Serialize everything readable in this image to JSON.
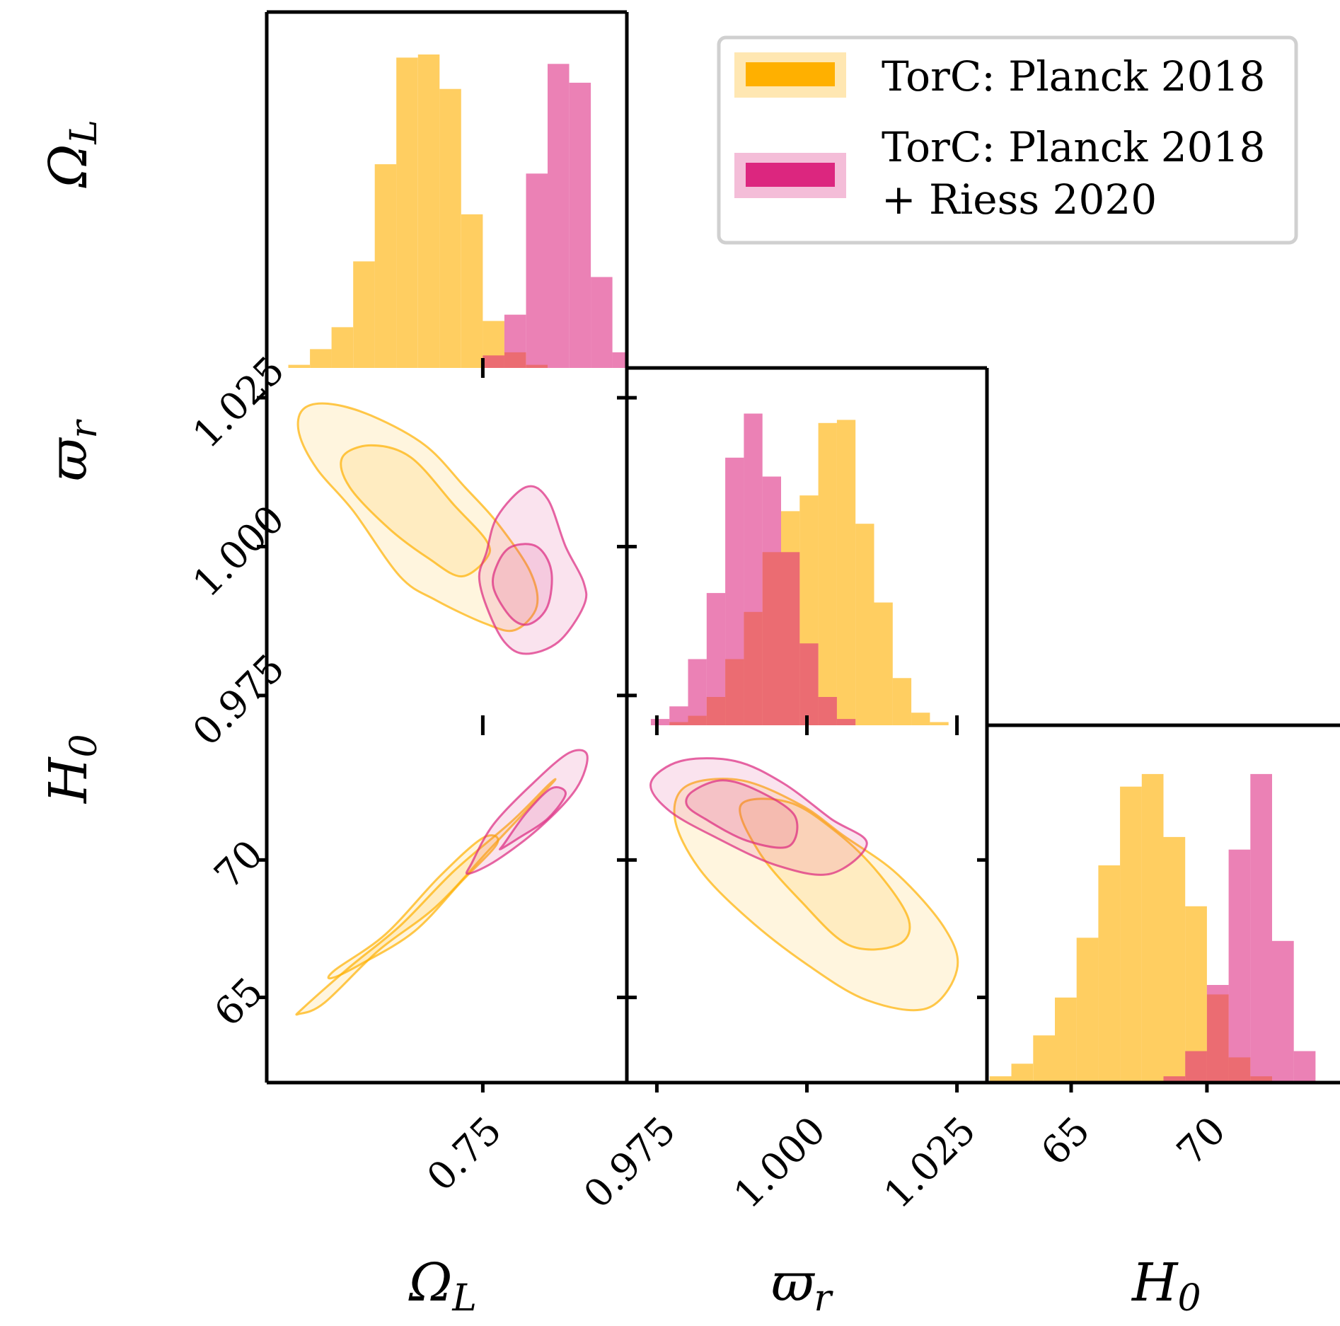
{
  "colors": {
    "planck": "#FFB000",
    "planck_fill_alpha": 0.62,
    "riess": "#DC267F",
    "riess_fill_alpha": 0.58,
    "frame": "#000000",
    "legend_border": "#d0d0d0"
  },
  "legend": {
    "placement": "top-right",
    "entries": [
      {
        "lines": [
          "TorC: Planck 2018"
        ],
        "color_key": "planck"
      },
      {
        "lines": [
          "TorC: Planck 2018",
          "+ Riess 2020"
        ],
        "color_key": "riess"
      }
    ]
  },
  "chart_data": {
    "type": "corner",
    "parameters": [
      "Ω_L",
      "ϖ_r",
      "H_0"
    ],
    "axis_labels": {
      "omega": {
        "base": "Ω",
        "sub": "L"
      },
      "varpi": {
        "base": "ϖ",
        "sub": "r"
      },
      "h0": {
        "base": "H",
        "sub": "0"
      }
    },
    "ranges": {
      "omega": [
        0.69,
        0.79
      ],
      "varpi": [
        0.97,
        1.03
      ],
      "h0": [
        61.9,
        74.9
      ]
    },
    "ticks": {
      "omega": [
        {
          "value": 0.75,
          "label": "0.75"
        }
      ],
      "varpi": [
        {
          "value": 0.975,
          "label": "0.975"
        },
        {
          "value": 1.0,
          "label": "1.000"
        },
        {
          "value": 1.025,
          "label": "1.025"
        }
      ],
      "h0": [
        {
          "value": 65,
          "label": "65"
        },
        {
          "value": 70,
          "label": "70"
        }
      ]
    },
    "histograms": {
      "omega": {
        "bin_edges": [
          0.696,
          0.702,
          0.708,
          0.714,
          0.72,
          0.726,
          0.732,
          0.738,
          0.744,
          0.75,
          0.756,
          0.762,
          0.768,
          0.774,
          0.78,
          0.786,
          0.792
        ],
        "series": [
          {
            "name": "TorC: Planck 2018",
            "color_key": "planck",
            "counts": [
              0.01,
              0.06,
              0.13,
              0.34,
              0.65,
              0.99,
              1.0,
              0.89,
              0.49,
              0.15,
              0.05,
              0.01,
              0,
              0,
              0,
              0
            ]
          },
          {
            "name": "TorC: Planck 2018 + Riess 2020",
            "color_key": "riess",
            "counts": [
              0,
              0,
              0,
              0,
              0,
              0,
              0,
              0,
              0,
              0.04,
              0.17,
              0.62,
              0.97,
              0.91,
              0.29,
              0.05
            ]
          }
        ]
      },
      "varpi": {
        "bin_edges": [
          0.974,
          0.9771,
          0.9802,
          0.9833,
          0.9864,
          0.9895,
          0.9926,
          0.9957,
          0.9988,
          1.0019,
          1.005,
          1.0081,
          1.0112,
          1.0143,
          1.0174,
          1.0205,
          1.0236,
          1.0267
        ],
        "series": [
          {
            "name": "TorC: Planck 2018",
            "color_key": "planck",
            "counts": [
              0,
              0.01,
              0.03,
              0.09,
              0.21,
              0.36,
              0.55,
              0.68,
              0.73,
              0.96,
              0.97,
              0.64,
              0.39,
              0.15,
              0.04,
              0.01,
              0
            ]
          },
          {
            "name": "TorC: Planck 2018 + Riess 2020",
            "color_key": "riess",
            "counts": [
              0.02,
              0.06,
              0.21,
              0.42,
              0.85,
              0.99,
              0.79,
              0.55,
              0.26,
              0.09,
              0.02,
              0,
              0,
              0,
              0,
              0,
              0
            ]
          }
        ]
      },
      "h0": {
        "bin_edges": [
          62.0,
          62.8,
          63.6,
          64.4,
          65.2,
          66.0,
          66.8,
          67.6,
          68.4,
          69.2,
          70.0,
          70.8,
          71.6,
          72.4,
          73.2,
          74.0
        ],
        "series": [
          {
            "name": "TorC: Planck 2018",
            "color_key": "planck",
            "counts": [
              0.02,
              0.06,
              0.15,
              0.27,
              0.46,
              0.69,
              0.94,
              0.98,
              0.78,
              0.56,
              0.28,
              0.08,
              0.02,
              0,
              0
            ]
          },
          {
            "name": "TorC: Planck 2018 + Riess 2020",
            "color_key": "riess",
            "counts": [
              0,
              0,
              0,
              0,
              0,
              0,
              0,
              0,
              0.02,
              0.1,
              0.31,
              0.74,
              0.98,
              0.45,
              0.1
            ]
          }
        ]
      }
    },
    "contours": {
      "omega_varpi": {
        "x": "omega",
        "y": "varpi",
        "series": [
          {
            "name": "TorC: Planck 2018",
            "color_key": "planck",
            "levels": [
              {
                "level": "outer",
                "points": [
                  [
                    0.7,
                    1.023
                  ],
                  [
                    0.707,
                    1.024
                  ],
                  [
                    0.719,
                    1.022
                  ],
                  [
                    0.734,
                    1.017
                  ],
                  [
                    0.745,
                    1.01
                  ],
                  [
                    0.754,
                    1.004
                  ],
                  [
                    0.763,
                    0.996
                  ],
                  [
                    0.765,
                    0.99
                  ],
                  [
                    0.759,
                    0.986
                  ],
                  [
                    0.751,
                    0.987
                  ],
                  [
                    0.737,
                    0.991
                  ],
                  [
                    0.727,
                    0.995
                  ],
                  [
                    0.714,
                    1.006
                  ],
                  [
                    0.704,
                    1.013
                  ],
                  [
                    0.699,
                    1.019
                  ]
                ]
              },
              {
                "level": "inner",
                "points": [
                  [
                    0.711,
                    1.015
                  ],
                  [
                    0.719,
                    1.017
                  ],
                  [
                    0.73,
                    1.015
                  ],
                  [
                    0.742,
                    1.007
                  ],
                  [
                    0.751,
                    1.001
                  ],
                  [
                    0.751,
                    0.998
                  ],
                  [
                    0.744,
                    0.995
                  ],
                  [
                    0.735,
                    0.998
                  ],
                  [
                    0.724,
                    1.003
                  ],
                  [
                    0.713,
                    1.01
                  ]
                ]
              }
            ]
          },
          {
            "name": "TorC: Planck 2018 + Riess 2020",
            "color_key": "riess",
            "levels": [
              {
                "level": "outer",
                "points": [
                  [
                    0.751,
                    0.999
                  ],
                  [
                    0.754,
                    1.005
                  ],
                  [
                    0.762,
                    1.01
                  ],
                  [
                    0.768,
                    1.008
                  ],
                  [
                    0.773,
                    1.0
                  ],
                  [
                    0.778,
                    0.994
                  ],
                  [
                    0.778,
                    0.99
                  ],
                  [
                    0.771,
                    0.984
                  ],
                  [
                    0.762,
                    0.982
                  ],
                  [
                    0.756,
                    0.984
                  ],
                  [
                    0.751,
                    0.99
                  ],
                  [
                    0.749,
                    0.995
                  ]
                ]
              },
              {
                "level": "inner",
                "points": [
                  [
                    0.754,
                    0.997
                  ],
                  [
                    0.758,
                    1.0
                  ],
                  [
                    0.765,
                    1.0
                  ],
                  [
                    0.769,
                    0.996
                  ],
                  [
                    0.768,
                    0.99
                  ],
                  [
                    0.763,
                    0.987
                  ],
                  [
                    0.758,
                    0.988
                  ],
                  [
                    0.753,
                    0.993
                  ]
                ]
              }
            ]
          }
        ]
      },
      "omega_h0": {
        "x": "omega",
        "y": "h0",
        "series": [
          {
            "name": "TorC: Planck 2018",
            "color_key": "planck",
            "levels": [
              {
                "level": "outer",
                "points": [
                  [
                    0.7,
                    64.6
                  ],
                  [
                    0.713,
                    66.1
                  ],
                  [
                    0.727,
                    67.6
                  ],
                  [
                    0.742,
                    69.6
                  ],
                  [
                    0.758,
                    71.4
                  ],
                  [
                    0.768,
                    72.7
                  ],
                  [
                    0.77,
                    72.9
                  ],
                  [
                    0.765,
                    72.2
                  ],
                  [
                    0.752,
                    70.4
                  ],
                  [
                    0.737,
                    68.3
                  ],
                  [
                    0.721,
                    66.7
                  ],
                  [
                    0.706,
                    64.8
                  ],
                  [
                    0.699,
                    64.4
                  ]
                ]
              },
              {
                "level": "inner",
                "points": [
                  [
                    0.709,
                    66.0
                  ],
                  [
                    0.723,
                    67.3
                  ],
                  [
                    0.738,
                    69.4
                  ],
                  [
                    0.75,
                    70.8
                  ],
                  [
                    0.754,
                    70.6
                  ],
                  [
                    0.744,
                    69.2
                  ],
                  [
                    0.731,
                    67.4
                  ],
                  [
                    0.716,
                    66.2
                  ],
                  [
                    0.708,
                    65.7
                  ]
                ]
              }
            ]
          },
          {
            "name": "TorC: Planck 2018 + Riess 2020",
            "color_key": "riess",
            "levels": [
              {
                "level": "outer",
                "points": [
                  [
                    0.747,
                    69.9
                  ],
                  [
                    0.753,
                    71.3
                  ],
                  [
                    0.764,
                    72.8
                  ],
                  [
                    0.774,
                    73.9
                  ],
                  [
                    0.779,
                    73.8
                  ],
                  [
                    0.776,
                    72.6
                  ],
                  [
                    0.766,
                    71.2
                  ],
                  [
                    0.754,
                    70.0
                  ],
                  [
                    0.746,
                    69.5
                  ]
                ]
              },
              {
                "level": "inner",
                "points": [
                  [
                    0.756,
                    70.6
                  ],
                  [
                    0.762,
                    71.7
                  ],
                  [
                    0.769,
                    72.6
                  ],
                  [
                    0.773,
                    72.4
                  ],
                  [
                    0.768,
                    71.5
                  ],
                  [
                    0.76,
                    70.8
                  ],
                  [
                    0.755,
                    70.4
                  ]
                ]
              }
            ]
          }
        ]
      },
      "varpi_h0": {
        "x": "varpi",
        "y": "h0",
        "series": [
          {
            "name": "TorC: Planck 2018",
            "color_key": "planck",
            "levels": [
              {
                "level": "outer",
                "points": [
                  [
                    0.98,
                    72.7
                  ],
                  [
                    0.989,
                    72.9
                  ],
                  [
                    0.999,
                    72.0
                  ],
                  [
                    1.006,
                    70.9
                  ],
                  [
                    1.015,
                    69.5
                  ],
                  [
                    1.023,
                    67.5
                  ],
                  [
                    1.025,
                    66.0
                  ],
                  [
                    1.02,
                    64.6
                  ],
                  [
                    1.01,
                    64.9
                  ],
                  [
                    1.0,
                    66.2
                  ],
                  [
                    0.99,
                    67.9
                  ],
                  [
                    0.982,
                    69.7
                  ],
                  [
                    0.978,
                    71.5
                  ]
                ]
              },
              {
                "level": "inner",
                "points": [
                  [
                    0.989,
                    72.0
                  ],
                  [
                    0.997,
                    72.1
                  ],
                  [
                    1.005,
                    71.0
                  ],
                  [
                    1.012,
                    69.5
                  ],
                  [
                    1.017,
                    67.8
                  ],
                  [
                    1.015,
                    66.9
                  ],
                  [
                    1.007,
                    66.9
                  ],
                  [
                    0.999,
                    68.5
                  ],
                  [
                    0.992,
                    70.3
                  ]
                ]
              }
            ]
          },
          {
            "name": "TorC: Planck 2018 + Riess 2020",
            "color_key": "riess",
            "levels": [
              {
                "level": "outer",
                "points": [
                  [
                    0.974,
                    72.8
                  ],
                  [
                    0.979,
                    73.6
                  ],
                  [
                    0.988,
                    73.6
                  ],
                  [
                    0.996,
                    72.8
                  ],
                  [
                    1.004,
                    71.5
                  ],
                  [
                    1.01,
                    70.6
                  ],
                  [
                    1.004,
                    69.5
                  ],
                  [
                    0.995,
                    69.8
                  ],
                  [
                    0.985,
                    70.8
                  ],
                  [
                    0.977,
                    71.8
                  ]
                ]
              },
              {
                "level": "inner",
                "points": [
                  [
                    0.981,
                    72.5
                  ],
                  [
                    0.986,
                    72.9
                  ],
                  [
                    0.992,
                    72.5
                  ],
                  [
                    0.998,
                    71.6
                  ],
                  [
                    0.997,
                    70.5
                  ],
                  [
                    0.99,
                    70.7
                  ],
                  [
                    0.983,
                    71.5
                  ],
                  [
                    0.98,
                    72.0
                  ]
                ]
              }
            ]
          }
        ]
      }
    }
  }
}
